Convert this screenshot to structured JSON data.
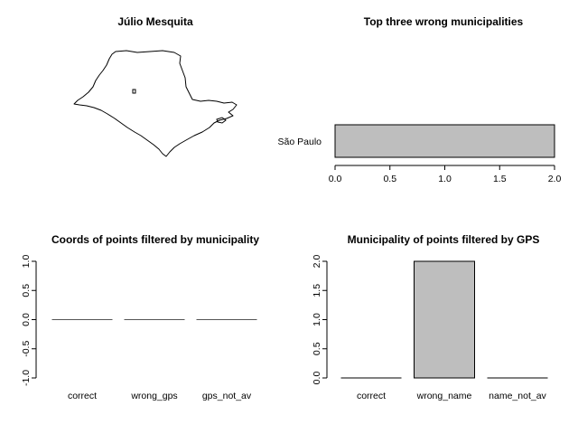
{
  "chart_data": [
    {
      "type": "map",
      "title": "Júlio Mesquita",
      "region": "São Paulo state outline",
      "marker": "small square at the municipality location"
    },
    {
      "type": "bar",
      "orientation": "horizontal",
      "title": "Top three wrong municipalities",
      "categories": [
        "São Paulo"
      ],
      "values": [
        2
      ],
      "xlim": [
        0,
        2
      ],
      "xticks": [
        "0.0",
        "0.5",
        "1.0",
        "1.5",
        "2.0"
      ]
    },
    {
      "type": "bar",
      "title": "Coords of points filtered by municipality",
      "categories": [
        "correct",
        "wrong_gps",
        "gps_not_av"
      ],
      "values": [
        0,
        0,
        0
      ],
      "ylim": [
        -1,
        1
      ],
      "yticks": [
        "-1.0",
        "-0.5",
        "0.0",
        "0.5",
        "1.0"
      ]
    },
    {
      "type": "bar",
      "title": "Municipality of points filtered by GPS",
      "categories": [
        "correct",
        "wrong_name",
        "name_not_av"
      ],
      "values": [
        0,
        2,
        0
      ],
      "ylim": [
        0,
        2
      ],
      "yticks": [
        "0.0",
        "0.5",
        "1.0",
        "1.5",
        "2.0"
      ]
    }
  ],
  "colors": {
    "bar_fill": "#bebebe",
    "outline": "#000000"
  }
}
